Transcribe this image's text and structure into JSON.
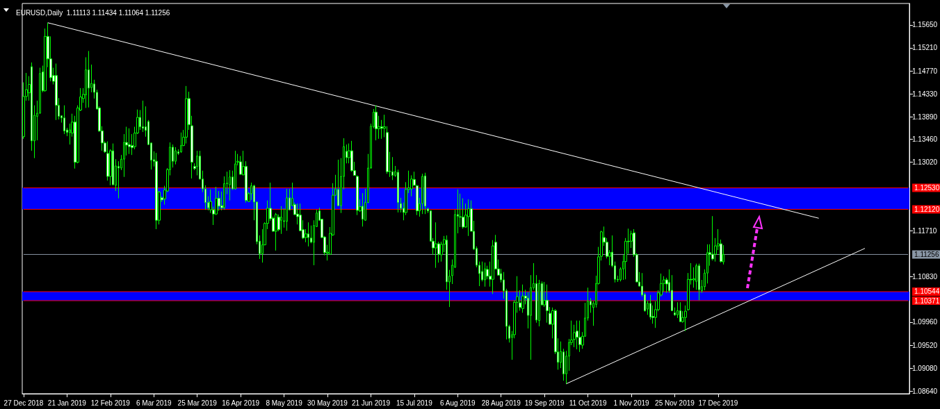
{
  "chart_data": {
    "type": "candlestick",
    "title": "EURUSD,Daily  1.11113 1.11434 1.11064 1.11256",
    "color": "#00ff00",
    "categories": [
      "27 Dec 2018",
      null,
      null,
      null,
      null,
      null,
      null,
      null,
      null,
      null,
      null,
      null,
      null,
      null,
      null,
      null,
      "21 Jan 2019",
      null,
      null,
      null,
      null,
      null,
      null,
      null,
      null,
      null,
      null,
      null,
      null,
      null,
      null,
      null,
      "12 Feb 2019",
      null,
      null,
      null,
      null,
      null,
      null,
      null,
      null,
      null,
      null,
      null,
      null,
      null,
      null,
      null,
      "6 Mar 2019",
      null,
      null,
      null,
      null,
      null,
      null,
      null,
      null,
      null,
      null,
      null,
      null,
      null,
      null,
      null,
      "25 Mar 2019",
      null,
      null,
      null,
      null,
      null,
      null,
      null,
      null,
      null,
      null,
      null,
      null,
      null,
      null,
      null,
      "16 Apr 2019",
      null,
      null,
      null,
      null,
      null,
      null,
      null,
      null,
      null,
      null,
      null,
      null,
      null,
      null,
      null,
      "8 May 2019",
      null,
      null,
      null,
      null,
      null,
      null,
      null,
      null,
      null,
      null,
      null,
      null,
      null,
      null,
      null,
      "30 May 2019",
      null,
      null,
      null,
      null,
      null,
      null,
      null,
      null,
      null,
      null,
      null,
      null,
      null,
      null,
      null,
      "21 Jun 2019",
      null,
      null,
      null,
      null,
      null,
      null,
      null,
      null,
      null,
      null,
      null,
      null,
      null,
      null,
      null,
      "15 Jul 2019",
      null,
      null,
      null,
      null,
      null,
      null,
      null,
      null,
      null,
      null,
      null,
      null,
      null,
      null,
      null,
      "6 Aug 2019",
      null,
      null,
      null,
      null,
      null,
      null,
      null,
      null,
      null,
      null,
      null,
      null,
      null,
      null,
      null,
      "28 Aug 2019",
      null,
      null,
      null,
      null,
      null,
      null,
      null,
      null,
      null,
      null,
      null,
      null,
      null,
      null,
      null,
      "19 Sep 2019",
      null,
      null,
      null,
      null,
      null,
      null,
      null,
      null,
      null,
      null,
      null,
      null,
      null,
      null,
      null,
      "11 Oct 2019",
      null,
      null,
      null,
      null,
      null,
      null,
      null,
      null,
      null,
      null,
      null,
      null,
      null,
      null,
      null,
      "1 Nov 2019",
      null,
      null,
      null,
      null,
      null,
      null,
      null,
      null,
      null,
      null,
      null,
      null,
      null,
      null,
      null,
      "25 Nov 2019",
      null,
      null,
      null,
      null,
      null,
      null,
      null,
      null,
      null,
      null,
      null,
      null,
      null,
      null,
      null,
      "17 Dec 2019",
      null,
      null,
      null,
      null,
      null,
      null,
      null,
      null,
      null,
      null,
      null,
      null,
      null,
      null,
      null,
      null,
      null,
      null,
      null,
      null,
      null,
      null,
      null,
      null,
      null,
      null,
      null,
      null,
      null,
      null,
      null,
      null,
      null,
      null,
      null,
      null,
      null,
      null,
      null,
      null,
      null,
      null,
      null,
      null,
      null,
      null,
      null,
      null,
      null,
      null,
      null,
      null,
      null,
      null,
      null,
      null,
      null,
      null,
      null,
      null,
      null,
      null,
      null,
      null,
      null,
      null,
      null,
      null,
      null,
      null
    ],
    "ohlc": [
      [
        1.1351,
        1.1455,
        1.1347,
        1.1428
      ],
      [
        1.1428,
        1.1473,
        1.142,
        1.1441
      ],
      [
        1.1435,
        1.1467,
        1.142,
        1.1451
      ],
      [
        1.1485,
        1.1493,
        1.1324,
        1.1343
      ],
      [
        1.1343,
        1.1411,
        1.131,
        1.1392
      ],
      [
        1.139,
        1.142,
        1.1344,
        1.1396
      ],
      [
        1.1396,
        1.1483,
        1.1395,
        1.1472
      ],
      [
        1.1475,
        1.1487,
        1.1436,
        1.1439
      ],
      [
        1.1439,
        1.1558,
        1.1437,
        1.1543
      ],
      [
        1.1543,
        1.1569,
        1.1484,
        1.15
      ],
      [
        1.15,
        1.1543,
        1.1457,
        1.1464
      ],
      [
        1.1468,
        1.1483,
        1.1451,
        1.1457
      ],
      [
        1.1468,
        1.1491,
        1.1383,
        1.1411
      ],
      [
        1.1411,
        1.1425,
        1.1384,
        1.139
      ],
      [
        1.1391,
        1.1392,
        1.1378,
        1.1387
      ],
      [
        1.1387,
        1.1411,
        1.1356,
        1.1362
      ],
      [
        1.1364,
        1.1368,
        1.1352,
        1.1359
      ],
      [
        1.1359,
        1.1376,
        1.1336,
        1.1364
      ],
      [
        1.1358,
        1.1395,
        1.1351,
        1.1379
      ],
      [
        1.1379,
        1.1391,
        1.129,
        1.1302
      ],
      [
        1.1302,
        1.1411,
        1.13,
        1.1406
      ],
      [
        1.1402,
        1.1444,
        1.14,
        1.1427
      ],
      [
        1.1424,
        1.1444,
        1.1416,
        1.1432
      ],
      [
        1.1431,
        1.1503,
        1.1406,
        1.1479
      ],
      [
        1.1479,
        1.1515,
        1.1407,
        1.1444
      ],
      [
        1.1445,
        1.1489,
        1.1436,
        1.1453
      ],
      [
        1.1452,
        1.146,
        1.1424,
        1.1436
      ],
      [
        1.1436,
        1.1441,
        1.1403,
        1.1404
      ],
      [
        1.1406,
        1.1409,
        1.136,
        1.1362
      ],
      [
        1.1362,
        1.1371,
        1.1324,
        1.1339
      ],
      [
        1.1339,
        1.1342,
        1.132,
        1.1322
      ],
      [
        1.1319,
        1.1342,
        1.1267,
        1.1275
      ],
      [
        1.1275,
        1.1327,
        1.1258,
        1.1324
      ],
      [
        1.1324,
        1.1338,
        1.1258,
        1.1259
      ],
      [
        1.1258,
        1.1308,
        1.1247,
        1.1295
      ],
      [
        1.1294,
        1.1304,
        1.1233,
        1.1291
      ],
      [
        1.1291,
        1.1316,
        1.1287,
        1.1308
      ],
      [
        1.1308,
        1.1356,
        1.1274,
        1.134
      ],
      [
        1.134,
        1.137,
        1.1315,
        1.1335
      ],
      [
        1.1336,
        1.1367,
        1.1318,
        1.1332
      ],
      [
        1.1334,
        1.1356,
        1.1316,
        1.133
      ],
      [
        1.1332,
        1.137,
        1.1327,
        1.1358
      ],
      [
        1.1358,
        1.1403,
        1.1356,
        1.1388
      ],
      [
        1.1388,
        1.1402,
        1.1364,
        1.137
      ],
      [
        1.137,
        1.142,
        1.136,
        1.1367
      ],
      [
        1.137,
        1.1409,
        1.1351,
        1.1363
      ],
      [
        1.138,
        1.1383,
        1.1335,
        1.1336
      ],
      [
        1.1339,
        1.134,
        1.1288,
        1.1306
      ],
      [
        1.1307,
        1.1323,
        1.1294,
        1.1304
      ],
      [
        1.1304,
        1.132,
        1.1174,
        1.1191
      ],
      [
        1.1191,
        1.1247,
        1.1183,
        1.1245
      ],
      [
        1.1234,
        1.1237,
        1.1226,
        1.123
      ],
      [
        1.1232,
        1.1257,
        1.1221,
        1.1249
      ],
      [
        1.1247,
        1.1291,
        1.1245,
        1.1288
      ],
      [
        1.1288,
        1.134,
        1.1277,
        1.1331
      ],
      [
        1.1331,
        1.1336,
        1.1292,
        1.1304
      ],
      [
        1.1304,
        1.1331,
        1.1298,
        1.1324
      ],
      [
        1.1322,
        1.1327,
        1.1316,
        1.1319
      ],
      [
        1.1322,
        1.1359,
        1.132,
        1.1334
      ],
      [
        1.1334,
        1.1364,
        1.1333,
        1.135
      ],
      [
        1.135,
        1.1448,
        1.1338,
        1.1424
      ],
      [
        1.1424,
        1.1437,
        1.1364,
        1.1374
      ],
      [
        1.1372,
        1.1391,
        1.1271,
        1.1302
      ],
      [
        1.1294,
        1.13,
        1.1287,
        1.129
      ],
      [
        1.1294,
        1.1324,
        1.1277,
        1.1314
      ],
      [
        1.1314,
        1.1324,
        1.1269,
        1.127
      ],
      [
        1.127,
        1.1286,
        1.1245,
        1.1251
      ],
      [
        1.1251,
        1.1258,
        1.1211,
        1.1225
      ],
      [
        1.1225,
        1.1237,
        1.121,
        1.1215
      ],
      [
        1.1211,
        1.125,
        1.1205,
        1.1227
      ],
      [
        1.1211,
        1.1217,
        1.1182,
        1.1203
      ],
      [
        1.1203,
        1.1255,
        1.1201,
        1.1233
      ],
      [
        1.1233,
        1.1247,
        1.1209,
        1.1218
      ],
      [
        1.1219,
        1.1246,
        1.121,
        1.1215
      ],
      [
        1.1215,
        1.1275,
        1.1211,
        1.1261
      ],
      [
        1.1261,
        1.1284,
        1.1241,
        1.1262
      ],
      [
        1.1259,
        1.1287,
        1.1229,
        1.1274
      ],
      [
        1.1274,
        1.1286,
        1.1249,
        1.1251
      ],
      [
        1.1251,
        1.1324,
        1.125,
        1.1299
      ],
      [
        1.1302,
        1.1318,
        1.1296,
        1.1304
      ],
      [
        1.1303,
        1.1314,
        1.1278,
        1.1279
      ],
      [
        1.1278,
        1.1324,
        1.1277,
        1.1294
      ],
      [
        1.1294,
        1.1304,
        1.1225,
        1.1229
      ],
      [
        1.1227,
        1.1245,
        1.1226,
        1.1242
      ],
      [
        1.1242,
        1.1263,
        1.123,
        1.1257
      ],
      [
        1.1257,
        1.1259,
        1.1191,
        1.1226
      ],
      [
        1.1226,
        1.1227,
        1.1145,
        1.115
      ],
      [
        1.1151,
        1.1162,
        1.1117,
        1.1127
      ],
      [
        1.1127,
        1.1174,
        1.111,
        1.1144
      ],
      [
        1.1144,
        1.1187,
        1.1143,
        1.1185
      ],
      [
        1.1185,
        1.1229,
        1.1174,
        1.1214
      ],
      [
        1.1214,
        1.1263,
        1.119,
        1.1194
      ],
      [
        1.1195,
        1.1198,
        1.1169,
        1.117
      ],
      [
        1.117,
        1.1205,
        1.1133,
        1.1202
      ],
      [
        1.1197,
        1.1202,
        1.117,
        1.1173
      ],
      [
        1.1191,
        1.1218,
        1.1165,
        1.1197
      ],
      [
        1.119,
        1.1214,
        1.1177,
        1.1189
      ],
      [
        1.1189,
        1.1251,
        1.1171,
        1.1234
      ],
      [
        1.1234,
        1.1251,
        1.121,
        1.1211
      ],
      [
        1.1219,
        1.1263,
        1.1218,
        1.1233
      ],
      [
        1.1221,
        1.1225,
        1.1201,
        1.1202
      ],
      [
        1.1203,
        1.1223,
        1.1183,
        1.1198
      ],
      [
        1.1201,
        1.1223,
        1.117,
        1.1171
      ],
      [
        1.1173,
        1.1191,
        1.1155,
        1.1157
      ],
      [
        1.1158,
        1.1174,
        1.1149,
        1.1165
      ],
      [
        1.1165,
        1.1187,
        1.1141,
        1.1158
      ],
      [
        1.1157,
        1.1181,
        1.1147,
        1.1149
      ],
      [
        1.1149,
        1.1191,
        1.1105,
        1.1181
      ],
      [
        1.1179,
        1.1211,
        1.1178,
        1.1205
      ],
      [
        1.1209,
        1.1215,
        1.119,
        1.1191
      ],
      [
        1.1193,
        1.1194,
        1.1157,
        1.1158
      ],
      [
        1.1159,
        1.1161,
        1.1124,
        1.1129
      ],
      [
        1.1128,
        1.1144,
        1.1114,
        1.113
      ],
      [
        1.1126,
        1.1178,
        1.1125,
        1.1166
      ],
      [
        1.1163,
        1.1262,
        1.1161,
        1.1239
      ],
      [
        1.1239,
        1.1278,
        1.1238,
        1.1251
      ],
      [
        1.125,
        1.1307,
        1.1218,
        1.1219
      ],
      [
        1.1219,
        1.131,
        1.1205,
        1.1275
      ],
      [
        1.1275,
        1.1348,
        1.125,
        1.1332
      ],
      [
        1.1323,
        1.1336,
        1.13,
        1.1311
      ],
      [
        1.1311,
        1.1338,
        1.13,
        1.1324
      ],
      [
        1.1324,
        1.1343,
        1.1284,
        1.1286
      ],
      [
        1.1286,
        1.1303,
        1.1276,
        1.1277
      ],
      [
        1.1275,
        1.1277,
        1.1201,
        1.121
      ],
      [
        1.1209,
        1.1231,
        1.1207,
        1.1217
      ],
      [
        1.1218,
        1.1243,
        1.1179,
        1.1193
      ],
      [
        1.1191,
        1.1251,
        1.119,
        1.1225
      ],
      [
        1.1225,
        1.1318,
        1.1224,
        1.1291
      ],
      [
        1.1291,
        1.1376,
        1.129,
        1.1371
      ],
      [
        1.137,
        1.1404,
        1.1367,
        1.1398
      ],
      [
        1.1398,
        1.1411,
        1.1344,
        1.1366
      ],
      [
        1.1366,
        1.1391,
        1.1347,
        1.137
      ],
      [
        1.137,
        1.1383,
        1.1347,
        1.1367
      ],
      [
        1.1367,
        1.1393,
        1.135,
        1.137
      ],
      [
        1.1359,
        1.1371,
        1.128,
        1.1284
      ],
      [
        1.1284,
        1.1322,
        1.1274,
        1.1285
      ],
      [
        1.1284,
        1.1312,
        1.1268,
        1.1277
      ],
      [
        1.1277,
        1.1295,
        1.1274,
        1.1284
      ],
      [
        1.1283,
        1.1288,
        1.1206,
        1.1225
      ],
      [
        1.1223,
        1.1234,
        1.1206,
        1.1214
      ],
      [
        1.1214,
        1.1225,
        1.1191,
        1.1206
      ],
      [
        1.1206,
        1.1264,
        1.1201,
        1.125
      ],
      [
        1.125,
        1.1286,
        1.1243,
        1.1253
      ],
      [
        1.1251,
        1.1277,
        1.1237,
        1.127
      ],
      [
        1.1269,
        1.1284,
        1.1257,
        1.1258
      ],
      [
        1.1257,
        1.1259,
        1.1201,
        1.1209
      ],
      [
        1.1209,
        1.1234,
        1.1198,
        1.1223
      ],
      [
        1.1223,
        1.128,
        1.1203,
        1.1275
      ],
      [
        1.1276,
        1.1282,
        1.1203,
        1.1218
      ],
      [
        1.1213,
        1.1215,
        1.1205,
        1.1209
      ],
      [
        1.1209,
        1.121,
        1.115,
        1.1151
      ],
      [
        1.1151,
        1.1157,
        1.1125,
        1.1138
      ],
      [
        1.1138,
        1.1187,
        1.11,
        1.1146
      ],
      [
        1.1146,
        1.115,
        1.111,
        1.1126
      ],
      [
        1.1125,
        1.115,
        1.1112,
        1.1145
      ],
      [
        1.1145,
        1.1161,
        1.113,
        1.1154
      ],
      [
        1.1153,
        1.1162,
        1.1058,
        1.1073
      ],
      [
        1.1073,
        1.1096,
        1.1025,
        1.1084
      ],
      [
        1.1085,
        1.1116,
        1.1069,
        1.1105
      ],
      [
        1.1101,
        1.1211,
        1.11,
        1.1202
      ],
      [
        1.1202,
        1.125,
        1.1166,
        1.1199
      ],
      [
        1.1198,
        1.1242,
        1.1178,
        1.1197
      ],
      [
        1.1197,
        1.1233,
        1.1175,
        1.1178
      ],
      [
        1.1178,
        1.1223,
        1.1177,
        1.1201
      ],
      [
        1.1198,
        1.1231,
        1.1161,
        1.1213
      ],
      [
        1.1213,
        1.1229,
        1.117,
        1.117
      ],
      [
        1.117,
        1.119,
        1.1134,
        1.1136
      ],
      [
        1.1137,
        1.1141,
        1.1101,
        1.1105
      ],
      [
        1.1105,
        1.1112,
        1.1065,
        1.1089
      ],
      [
        1.1093,
        1.1112,
        1.1074,
        1.1077
      ],
      [
        1.1077,
        1.111,
        1.1064,
        1.1098
      ],
      [
        1.1097,
        1.1104,
        1.1078,
        1.1084
      ],
      [
        1.1084,
        1.1112,
        1.1064,
        1.1078
      ],
      [
        1.1078,
        1.1153,
        1.105,
        1.1142
      ],
      [
        1.1149,
        1.1163,
        1.1097,
        1.1098
      ],
      [
        1.1098,
        1.1116,
        1.1085,
        1.1086
      ],
      [
        1.1089,
        1.1098,
        1.1072,
        1.1077
      ],
      [
        1.1077,
        1.1092,
        1.1041,
        1.1056
      ],
      [
        1.1056,
        1.106,
        1.0963,
        1.0988
      ],
      [
        1.0988,
        1.0991,
        1.0957,
        1.0965
      ],
      [
        1.0967,
        1.0979,
        1.0924,
        1.0972
      ],
      [
        1.0972,
        1.1038,
        1.0965,
        1.1034
      ],
      [
        1.1034,
        1.1084,
        1.1014,
        1.1045
      ],
      [
        1.1033,
        1.1057,
        1.1018,
        1.1024
      ],
      [
        1.1022,
        1.1068,
        1.1014,
        1.1046
      ],
      [
        1.1046,
        1.1058,
        1.103,
        1.1042
      ],
      [
        1.1042,
        1.1054,
        1.0984,
        1.1009
      ],
      [
        1.1009,
        1.1086,
        1.0924,
        1.1062
      ],
      [
        1.1062,
        1.1109,
        1.1058,
        1.107
      ],
      [
        1.107,
        1.1086,
        1.0995,
        1.1
      ],
      [
        1.0999,
        1.1077,
        1.0988,
        1.107
      ],
      [
        1.107,
        1.1074,
        1.1028,
        1.1029
      ],
      [
        1.1029,
        1.1073,
        1.1025,
        1.1038
      ],
      [
        1.1038,
        1.1068,
        1.0995,
        1.1018
      ],
      [
        1.1013,
        1.1025,
        1.0991,
        1.0992
      ],
      [
        1.0992,
        1.1024,
        1.0965,
        1.1018
      ],
      [
        1.1018,
        1.1021,
        1.0935,
        1.0939
      ],
      [
        1.0939,
        1.0965,
        1.0905,
        1.0919
      ],
      [
        1.0919,
        1.0959,
        1.0908,
        1.094
      ],
      [
        1.0939,
        1.0945,
        1.0884,
        1.0897
      ],
      [
        1.0897,
        1.0941,
        1.0878,
        1.0931
      ],
      [
        1.0931,
        1.0964,
        1.0903,
        1.0957
      ],
      [
        1.0957,
        1.0999,
        1.0952,
        1.0962
      ],
      [
        1.0963,
        1.0991,
        1.0948,
        1.0976
      ],
      [
        1.0979,
        1.0999,
        1.0944,
        1.0967
      ],
      [
        1.0967,
        1.0999,
        1.0939,
        1.0953
      ],
      [
        1.0952,
        1.0977,
        1.0945,
        1.0969
      ],
      [
        1.0969,
        1.1033,
        1.0968,
        1.1004
      ],
      [
        1.1004,
        1.1062,
        1.0999,
        1.1036
      ],
      [
        1.1036,
        1.1042,
        1.1014,
        1.1029
      ],
      [
        1.1024,
        1.1036,
        1.0989,
        1.1032
      ],
      [
        1.103,
        1.1085,
        1.1024,
        1.107
      ],
      [
        1.107,
        1.114,
        1.1068,
        1.1121
      ],
      [
        1.1122,
        1.1171,
        1.1114,
        1.1169
      ],
      [
        1.1158,
        1.1179,
        1.1142,
        1.1149
      ],
      [
        1.1149,
        1.1157,
        1.1118,
        1.1122
      ],
      [
        1.1122,
        1.1134,
        1.1105,
        1.1129
      ],
      [
        1.113,
        1.1162,
        1.1101,
        1.1104
      ],
      [
        1.1104,
        1.1112,
        1.1072,
        1.1078
      ],
      [
        1.1078,
        1.1085,
        1.1073,
        1.1077
      ],
      [
        1.1077,
        1.1101,
        1.1074,
        1.1098
      ],
      [
        1.1098,
        1.1125,
        1.1077,
        1.1112
      ],
      [
        1.1112,
        1.1157,
        1.1078,
        1.1151
      ],
      [
        1.1151,
        1.1175,
        1.1127,
        1.115
      ],
      [
        1.1151,
        1.1171,
        1.1138,
        1.1165
      ],
      [
        1.1167,
        1.1174,
        1.1121,
        1.1125
      ],
      [
        1.1125,
        1.1128,
        1.1072,
        1.1073
      ],
      [
        1.1073,
        1.1092,
        1.1064,
        1.1065
      ],
      [
        1.1065,
        1.109,
        1.1045,
        1.1048
      ],
      [
        1.1049,
        1.1052,
        1.1016,
        1.1018
      ],
      [
        1.1021,
        1.1037,
        1.101,
        1.1032
      ],
      [
        1.1032,
        1.1048,
        1.1001,
        1.1006
      ],
      [
        1.1007,
        1.1028,
        1.0993,
        1.1005
      ],
      [
        1.1005,
        1.1036,
        1.0985,
        1.102
      ],
      [
        1.102,
        1.1057,
        1.1017,
        1.1052
      ],
      [
        1.1048,
        1.1089,
        1.1045,
        1.107
      ],
      [
        1.107,
        1.1084,
        1.1054,
        1.1077
      ],
      [
        1.1077,
        1.1081,
        1.1052,
        1.1069
      ],
      [
        1.1072,
        1.1097,
        1.1052,
        1.1056
      ],
      [
        1.1057,
        1.1086,
        1.1017,
        1.1018
      ],
      [
        1.1014,
        1.1024,
        1.1008,
        1.101
      ],
      [
        1.101,
        1.1034,
        1.1004,
        1.1018
      ],
      [
        1.1018,
        1.1034,
        1.0997,
        1.0997
      ],
      [
        1.0997,
        1.1017,
        1.0995,
        1.1005
      ],
      [
        1.1005,
        1.1028,
        1.0979,
        1.1017
      ],
      [
        1.102,
        1.109,
        1.1018,
        1.1078
      ],
      [
        1.1078,
        1.1109,
        1.1068,
        1.1077
      ],
      [
        1.1077,
        1.1101,
        1.1062,
        1.1079
      ],
      [
        1.1074,
        1.1108,
        1.1058,
        1.1104
      ],
      [
        1.1104,
        1.1108,
        1.1038,
        1.1058
      ],
      [
        1.1056,
        1.1077,
        1.1052,
        1.1064
      ],
      [
        1.1064,
        1.1097,
        1.1057,
        1.109
      ],
      [
        1.109,
        1.1145,
        1.107,
        1.1129
      ],
      [
        1.1129,
        1.1145,
        1.1104,
        1.1126
      ],
      [
        1.1126,
        1.1199,
        1.1114,
        1.1117
      ],
      [
        1.1126,
        1.1157,
        1.1112,
        1.1142
      ],
      [
        1.1142,
        1.1174,
        1.1134,
        1.1146
      ],
      [
        1.1146,
        1.1154,
        1.111,
        1.1112
      ],
      [
        1.11113,
        1.11434,
        1.11064,
        1.11256
      ],
      null,
      null,
      null,
      null,
      null,
      null,
      null,
      null,
      null,
      null,
      null,
      null,
      null,
      null,
      null,
      null,
      null,
      null,
      null,
      null,
      null,
      null,
      null,
      null,
      null,
      null,
      null,
      null,
      null,
      null,
      null,
      null,
      null,
      null,
      null,
      null,
      null,
      null,
      null,
      null,
      null,
      null,
      null,
      null,
      null,
      null,
      null,
      null,
      null,
      null,
      null,
      null,
      null,
      null,
      null,
      null,
      null,
      null,
      null,
      null,
      null,
      null,
      null,
      null,
      null,
      null,
      null,
      null
    ],
    "series": [
      {
        "type": "line",
        "color": "#ffffff",
        "values": [
          null,
          null,
          null,
          null,
          null,
          null,
          null,
          null,
          null,
          1.1569,
          null,
          null,
          null,
          null,
          null,
          null,
          null,
          null,
          null,
          null,
          null,
          null,
          null,
          null,
          null,
          null,
          null,
          null,
          null,
          null,
          null,
          null,
          null,
          null,
          null,
          null,
          null,
          null,
          null,
          null,
          null,
          null,
          null,
          null,
          null,
          null,
          null,
          null,
          null,
          null,
          null,
          null,
          null,
          null,
          null,
          null,
          null,
          null,
          null,
          null,
          null,
          null,
          null,
          null,
          null,
          null,
          null,
          null,
          null,
          null,
          null,
          null,
          null,
          null,
          null,
          null,
          null,
          null,
          null,
          null,
          null,
          null,
          null,
          null,
          null,
          null,
          null,
          null,
          null,
          null,
          null,
          null,
          null,
          null,
          null,
          null,
          null,
          null,
          null,
          null,
          null,
          null,
          null,
          null,
          null,
          null,
          null,
          null,
          null,
          null,
          null,
          null,
          null,
          null,
          null,
          null,
          null,
          null,
          null,
          null,
          null,
          null,
          null,
          null,
          null,
          null,
          null,
          null,
          null,
          null,
          null,
          null,
          null,
          null,
          null,
          null,
          null,
          null,
          null,
          null,
          null,
          null,
          null,
          null,
          null,
          null,
          null,
          null,
          null,
          null,
          null,
          null,
          null,
          null,
          null,
          null,
          null,
          null,
          null,
          null,
          null,
          null,
          null,
          null,
          null,
          null,
          null,
          null,
          null,
          null,
          null,
          null,
          null,
          null,
          null,
          null,
          null,
          null,
          null,
          null,
          null,
          null,
          null,
          null,
          null,
          null,
          null,
          null,
          null,
          null,
          null,
          null,
          null,
          null,
          null,
          null,
          null,
          null,
          null,
          null,
          null,
          null,
          null,
          null,
          null,
          null,
          null,
          null,
          null,
          null,
          null,
          null,
          null,
          null,
          null,
          null,
          null,
          null,
          null,
          null,
          null,
          null,
          null,
          null,
          null,
          null,
          null,
          null,
          null,
          null,
          null,
          null,
          null,
          null,
          null,
          null,
          null,
          null,
          null,
          null,
          null,
          null,
          null,
          null,
          null,
          null,
          null,
          null,
          null,
          null,
          null,
          null,
          null,
          null,
          null,
          null,
          null,
          null,
          null,
          null,
          null,
          null,
          null,
          null,
          null,
          null,
          null,
          null,
          null,
          null,
          null,
          null,
          null,
          null,
          null,
          null,
          null,
          null,
          null,
          null,
          null,
          null,
          null,
          null,
          null,
          null,
          null,
          null,
          null,
          null,
          null,
          null,
          null,
          1.1195,
          null,
          null,
          null,
          null,
          null,
          null,
          null,
          null,
          null,
          null,
          null,
          null,
          null,
          null,
          null,
          null,
          null,
          null,
          null,
          null,
          null,
          null,
          null,
          null,
          null,
          null,
          null,
          null,
          null,
          null,
          null,
          null,
          null
        ]
      },
      {
        "type": "line",
        "color": "#ffffff",
        "values": [
          null,
          null,
          null,
          null,
          null,
          null,
          null,
          null,
          null,
          null,
          null,
          null,
          null,
          null,
          null,
          null,
          null,
          null,
          null,
          null,
          null,
          null,
          null,
          null,
          null,
          null,
          null,
          null,
          null,
          null,
          null,
          null,
          null,
          null,
          null,
          null,
          null,
          null,
          null,
          null,
          null,
          null,
          null,
          null,
          null,
          null,
          null,
          null,
          null,
          null,
          null,
          null,
          null,
          null,
          null,
          null,
          null,
          null,
          null,
          null,
          null,
          null,
          null,
          null,
          null,
          null,
          null,
          null,
          null,
          null,
          null,
          null,
          null,
          null,
          null,
          null,
          null,
          null,
          null,
          null,
          null,
          null,
          null,
          null,
          null,
          null,
          null,
          null,
          null,
          null,
          null,
          null,
          null,
          null,
          null,
          null,
          null,
          null,
          null,
          null,
          null,
          null,
          null,
          null,
          null,
          null,
          null,
          null,
          null,
          null,
          null,
          null,
          null,
          null,
          null,
          null,
          null,
          null,
          null,
          null,
          null,
          null,
          null,
          null,
          null,
          null,
          null,
          null,
          null,
          null,
          null,
          null,
          null,
          null,
          null,
          null,
          null,
          null,
          null,
          null,
          null,
          null,
          null,
          null,
          null,
          null,
          null,
          null,
          null,
          null,
          null,
          null,
          null,
          null,
          null,
          null,
          null,
          null,
          null,
          null,
          null,
          null,
          null,
          null,
          null,
          null,
          null,
          null,
          null,
          null,
          null,
          null,
          null,
          null,
          null,
          null,
          null,
          null,
          null,
          null,
          null,
          null,
          null,
          null,
          null,
          null,
          null,
          null,
          null,
          null,
          null,
          null,
          null,
          null,
          null,
          null,
          null,
          null,
          null,
          null,
          1.0878,
          null,
          null,
          null,
          null,
          null,
          null,
          null,
          null,
          null,
          null,
          null,
          null,
          null,
          null,
          null,
          null,
          null,
          null,
          null,
          null,
          null,
          null,
          null,
          null,
          null,
          null,
          null,
          null,
          null,
          null,
          null,
          null,
          null,
          null,
          null,
          null,
          null,
          null,
          null,
          null,
          null,
          null,
          null,
          null,
          null,
          null,
          null,
          null,
          null,
          null,
          null,
          null,
          null,
          null,
          null,
          null,
          null,
          null,
          null,
          null,
          null,
          null,
          null,
          null,
          null,
          null,
          null,
          null,
          null,
          null,
          null,
          null,
          null,
          null,
          null,
          null,
          null,
          null,
          null,
          null,
          null,
          null,
          null,
          null,
          null,
          null,
          null,
          null,
          null,
          null,
          null,
          null,
          null,
          null,
          null,
          null,
          null,
          null,
          null,
          null,
          null,
          null,
          null,
          null,
          null,
          null,
          null,
          null,
          null,
          1.1137,
          null,
          null,
          null,
          null,
          null,
          null,
          null,
          null,
          null,
          null,
          null,
          null,
          null,
          null,
          null,
          null
        ]
      }
    ],
    "ylim": [
      1.0859,
      1.1606
    ],
    "yticks": [
      {
        "value": 1.0864,
        "label": "1.08640"
      },
      {
        "value": 1.0908,
        "label": "1.09080"
      },
      {
        "value": 1.0952,
        "label": "1.09520"
      },
      {
        "value": 1.0996,
        "label": "1.09960"
      },
      {
        "value": 1.1083,
        "label": "1.10830"
      },
      {
        "value": 1.1171,
        "label": "1.11710"
      },
      {
        "value": 1.1302,
        "label": "1.13020"
      },
      {
        "value": 1.1346,
        "label": "1.13460"
      },
      {
        "value": 1.1389,
        "label": "1.13890"
      },
      {
        "value": 1.1433,
        "label": "1.14330"
      },
      {
        "value": 1.1477,
        "label": "1.14770"
      },
      {
        "value": 1.1521,
        "label": "1.15210"
      },
      {
        "value": 1.1565,
        "label": "1.15650"
      }
    ],
    "ref_lines": [
      {
        "axis": "y",
        "value": 1.1253,
        "label": "1.12530",
        "color": "#ff0000"
      },
      {
        "axis": "y",
        "value": 1.1212,
        "label": "1.12120",
        "color": "#ff0000"
      },
      {
        "axis": "y",
        "value": 1.11256,
        "label": "1.11256",
        "color": "#8a97a6"
      },
      {
        "axis": "y",
        "value": 1.10544,
        "label": "1.10544",
        "color": "#ff0000"
      },
      {
        "axis": "y",
        "value": 1.10371,
        "label": "1.10371",
        "color": "#ff0000"
      }
    ],
    "bands": [
      {
        "axis": "y",
        "from": 1.1212,
        "to": 1.1253,
        "color": "#0000ff"
      },
      {
        "axis": "y",
        "from": 1.10371,
        "to": 1.10544,
        "color": "#0000ff"
      }
    ],
    "grid": false,
    "marker": "none"
  }
}
